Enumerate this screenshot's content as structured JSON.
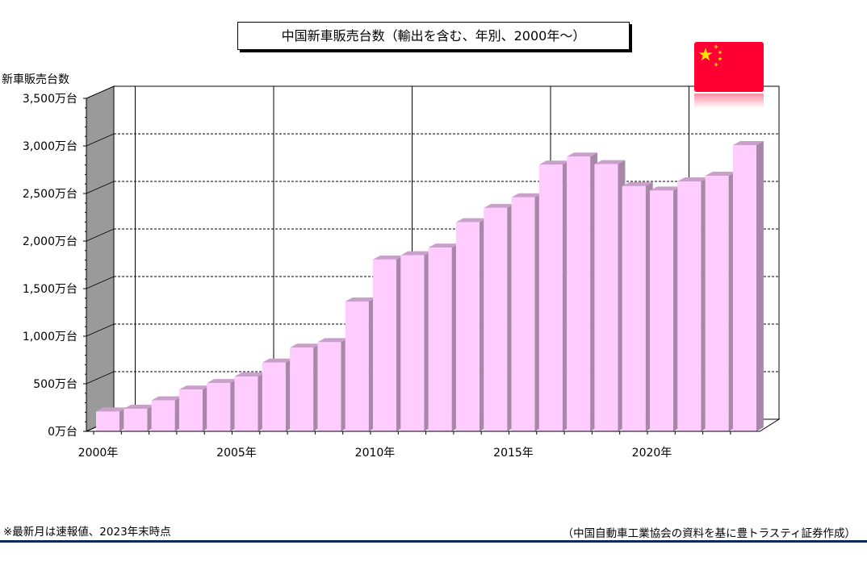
{
  "chart_data": {
    "type": "bar",
    "title": "中国新車販売台数（輸出を含む、年別、2000年～）",
    "ylabel": "新車販売台数",
    "xlabel": "",
    "ylim": [
      0,
      3500
    ],
    "yticks": [
      0,
      500,
      1000,
      1500,
      2000,
      2500,
      3000,
      3500
    ],
    "ytick_labels": [
      "0万台",
      "500万台",
      "1,000万台",
      "1,500万台",
      "2,000万台",
      "2,500万台",
      "3,000万台",
      "3,500万台"
    ],
    "xtick_labels": [
      "2000年",
      "2005年",
      "2010年",
      "2015年",
      "2020年"
    ],
    "categories": [
      2000,
      2001,
      2002,
      2003,
      2004,
      2005,
      2006,
      2007,
      2008,
      2009,
      2010,
      2011,
      2012,
      2013,
      2014,
      2015,
      2016,
      2017,
      2018,
      2019,
      2020,
      2021,
      2022,
      2023
    ],
    "values": [
      209,
      237,
      325,
      439,
      507,
      576,
      722,
      879,
      938,
      1364,
      1806,
      1851,
      1931,
      2198,
      2349,
      2460,
      2803,
      2888,
      2808,
      2577,
      2531,
      2627,
      2686,
      3009
    ],
    "grid": true,
    "bar_color": "#ffccff"
  },
  "flag": {
    "country": "China",
    "icon": "china-flag-icon",
    "color": "#ff0033",
    "star_color": "#ffde00"
  },
  "footnote": "※最新月は速報値、2023年末時点",
  "source": "（中国自動車工業協会の資料を基に豊トラスティ証券作成）"
}
